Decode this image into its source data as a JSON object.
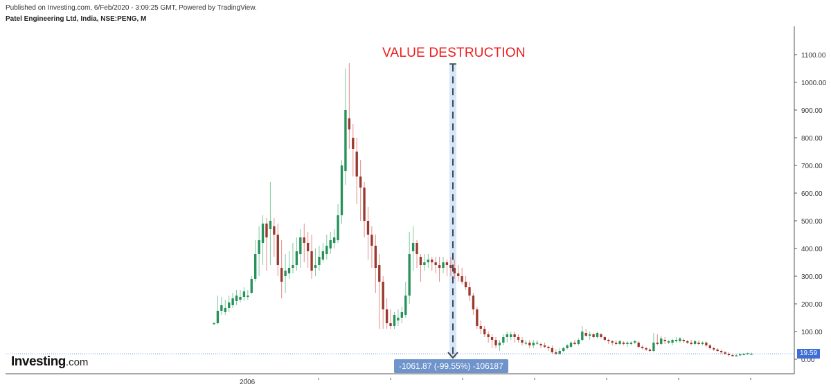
{
  "header": {
    "published": "Published on Investing.com, 6/Feb/2020 - 3:09:25 GMT, Powered by TradingView.",
    "symbol": "Patel Engineering Ltd, India, NSE:PENG, M"
  },
  "annotation": {
    "title": "VALUE DESTRUCTION",
    "measure": "-1061.87 (-99.55%) -106187",
    "title_color": "#ee1c1c"
  },
  "brand": {
    "name": "Investing",
    "suffix": ".com"
  },
  "last_price": "19.59",
  "colors": {
    "up": "#26925a",
    "down": "#9a3a2e",
    "up_wick": "#79c99b",
    "down_wick": "#e58a8a",
    "measure_band": "#d6e6fb",
    "price_line": "#3d6fd6"
  },
  "chart_data": {
    "type": "candlestick",
    "title": "",
    "xlabel": "",
    "ylabel": "",
    "ylim": [
      0,
      1200
    ],
    "y_ticks": [
      "0.00",
      "100.00",
      "200.00",
      "300.00",
      "400.00",
      "500.00",
      "600.00",
      "700.00",
      "800.00",
      "900.00",
      "1000.00",
      "1100.00"
    ],
    "x_labels": [
      "2006"
    ],
    "grid": false,
    "candles_ohlc": [
      [
        130,
        135,
        125,
        130
      ],
      [
        130,
        230,
        125,
        175
      ],
      [
        175,
        225,
        160,
        195
      ],
      [
        170,
        215,
        160,
        185
      ],
      [
        185,
        230,
        170,
        205
      ],
      [
        195,
        240,
        185,
        220
      ],
      [
        210,
        250,
        195,
        230
      ],
      [
        215,
        250,
        205,
        225
      ],
      [
        225,
        260,
        210,
        245
      ],
      [
        225,
        250,
        215,
        230
      ],
      [
        240,
        300,
        235,
        290
      ],
      [
        290,
        430,
        280,
        380
      ],
      [
        380,
        480,
        300,
        430
      ],
      [
        420,
        520,
        340,
        490
      ],
      [
        490,
        510,
        320,
        440
      ],
      [
        470,
        640,
        340,
        500
      ],
      [
        480,
        510,
        370,
        450
      ],
      [
        450,
        490,
        300,
        340
      ],
      [
        330,
        430,
        220,
        280
      ],
      [
        300,
        380,
        240,
        320
      ],
      [
        310,
        390,
        290,
        330
      ],
      [
        330,
        420,
        310,
        340
      ],
      [
        340,
        440,
        320,
        390
      ],
      [
        380,
        470,
        330,
        440
      ],
      [
        440,
        490,
        350,
        420
      ],
      [
        420,
        460,
        330,
        390
      ],
      [
        390,
        450,
        290,
        320
      ],
      [
        330,
        400,
        300,
        340
      ],
      [
        340,
        410,
        320,
        370
      ],
      [
        360,
        420,
        350,
        390
      ],
      [
        380,
        450,
        360,
        410
      ],
      [
        400,
        460,
        380,
        430
      ],
      [
        420,
        470,
        400,
        440
      ],
      [
        430,
        560,
        420,
        520
      ],
      [
        520,
        720,
        490,
        700
      ],
      [
        680,
        1050,
        630,
        900
      ],
      [
        870,
        1070,
        760,
        830
      ],
      [
        800,
        850,
        660,
        760
      ],
      [
        750,
        800,
        560,
        660
      ],
      [
        660,
        720,
        500,
        620
      ],
      [
        620,
        640,
        440,
        500
      ],
      [
        500,
        550,
        360,
        450
      ],
      [
        450,
        480,
        330,
        410
      ],
      [
        410,
        450,
        240,
        330
      ],
      [
        340,
        380,
        110,
        280
      ],
      [
        280,
        300,
        110,
        180
      ],
      [
        180,
        220,
        110,
        130
      ],
      [
        130,
        180,
        110,
        120
      ],
      [
        120,
        170,
        110,
        160
      ],
      [
        140,
        180,
        120,
        150
      ],
      [
        150,
        190,
        130,
        170
      ],
      [
        160,
        280,
        150,
        230
      ],
      [
        230,
        460,
        200,
        380
      ],
      [
        390,
        480,
        320,
        420
      ],
      [
        420,
        430,
        330,
        380
      ],
      [
        370,
        380,
        280,
        340
      ],
      [
        340,
        380,
        320,
        350
      ],
      [
        350,
        380,
        330,
        360
      ],
      [
        360,
        370,
        320,
        350
      ],
      [
        350,
        370,
        310,
        340
      ],
      [
        340,
        370,
        280,
        330
      ],
      [
        330,
        370,
        310,
        350
      ],
      [
        350,
        360,
        300,
        340
      ],
      [
        340,
        370,
        300,
        330
      ],
      [
        330,
        360,
        290,
        310
      ],
      [
        310,
        340,
        280,
        300
      ],
      [
        300,
        330,
        270,
        280
      ],
      [
        280,
        300,
        250,
        260
      ],
      [
        260,
        280,
        210,
        230
      ],
      [
        230,
        240,
        160,
        180
      ],
      [
        180,
        190,
        110,
        120
      ],
      [
        120,
        140,
        90,
        110
      ],
      [
        110,
        120,
        80,
        90
      ],
      [
        90,
        100,
        60,
        80
      ],
      [
        80,
        90,
        40,
        70
      ],
      [
        70,
        80,
        40,
        50
      ],
      [
        50,
        70,
        30,
        60
      ],
      [
        60,
        90,
        50,
        80
      ],
      [
        80,
        100,
        60,
        90
      ],
      [
        80,
        100,
        70,
        90
      ],
      [
        90,
        100,
        60,
        80
      ],
      [
        80,
        90,
        60,
        70
      ],
      [
        70,
        80,
        50,
        60
      ],
      [
        60,
        70,
        50,
        60
      ],
      [
        60,
        70,
        40,
        50
      ],
      [
        50,
        70,
        40,
        60
      ],
      [
        60,
        70,
        50,
        60
      ],
      [
        55,
        60,
        40,
        50
      ],
      [
        50,
        60,
        40,
        45
      ],
      [
        45,
        50,
        30,
        40
      ],
      [
        40,
        50,
        20,
        25
      ],
      [
        25,
        35,
        15,
        20
      ],
      [
        20,
        40,
        15,
        30
      ],
      [
        30,
        45,
        25,
        40
      ],
      [
        40,
        55,
        35,
        50
      ],
      [
        45,
        65,
        40,
        60
      ],
      [
        60,
        70,
        50,
        55
      ],
      [
        55,
        75,
        50,
        70
      ],
      [
        70,
        120,
        65,
        100
      ],
      [
        95,
        110,
        80,
        85
      ],
      [
        85,
        100,
        70,
        90
      ],
      [
        90,
        95,
        75,
        80
      ],
      [
        80,
        100,
        75,
        95
      ],
      [
        90,
        95,
        75,
        80
      ],
      [
        80,
        85,
        65,
        70
      ],
      [
        70,
        75,
        55,
        65
      ],
      [
        65,
        70,
        50,
        60
      ],
      [
        60,
        70,
        50,
        55
      ],
      [
        55,
        70,
        50,
        65
      ],
      [
        60,
        65,
        50,
        55
      ],
      [
        55,
        65,
        45,
        60
      ],
      [
        55,
        65,
        50,
        60
      ],
      [
        60,
        70,
        55,
        65
      ],
      [
        60,
        65,
        40,
        45
      ],
      [
        45,
        50,
        35,
        40
      ],
      [
        40,
        45,
        30,
        35
      ],
      [
        35,
        40,
        25,
        30
      ],
      [
        30,
        95,
        25,
        60
      ],
      [
        60,
        90,
        50,
        55
      ],
      [
        55,
        85,
        50,
        75
      ],
      [
        70,
        80,
        55,
        65
      ],
      [
        60,
        70,
        55,
        65
      ],
      [
        60,
        75,
        50,
        70
      ],
      [
        65,
        80,
        60,
        70
      ],
      [
        65,
        80,
        60,
        75
      ],
      [
        70,
        75,
        60,
        65
      ],
      [
        65,
        70,
        55,
        60
      ],
      [
        60,
        70,
        50,
        55
      ],
      [
        55,
        70,
        50,
        65
      ],
      [
        60,
        70,
        50,
        55
      ],
      [
        55,
        65,
        50,
        60
      ],
      [
        60,
        65,
        45,
        50
      ],
      [
        50,
        55,
        35,
        40
      ],
      [
        40,
        45,
        30,
        35
      ],
      [
        35,
        40,
        25,
        30
      ],
      [
        30,
        35,
        20,
        25
      ],
      [
        25,
        30,
        15,
        20
      ],
      [
        20,
        25,
        10,
        15
      ],
      [
        15,
        20,
        10,
        12
      ],
      [
        12,
        20,
        10,
        14
      ],
      [
        14,
        22,
        12,
        18
      ],
      [
        18,
        22,
        14,
        19
      ],
      [
        19,
        24,
        16,
        22
      ],
      [
        20,
        24,
        17,
        20
      ]
    ],
    "measurement": {
      "change": -1061.87,
      "change_pct": -99.55,
      "ticks": -106187
    },
    "last_value": 19.59
  }
}
